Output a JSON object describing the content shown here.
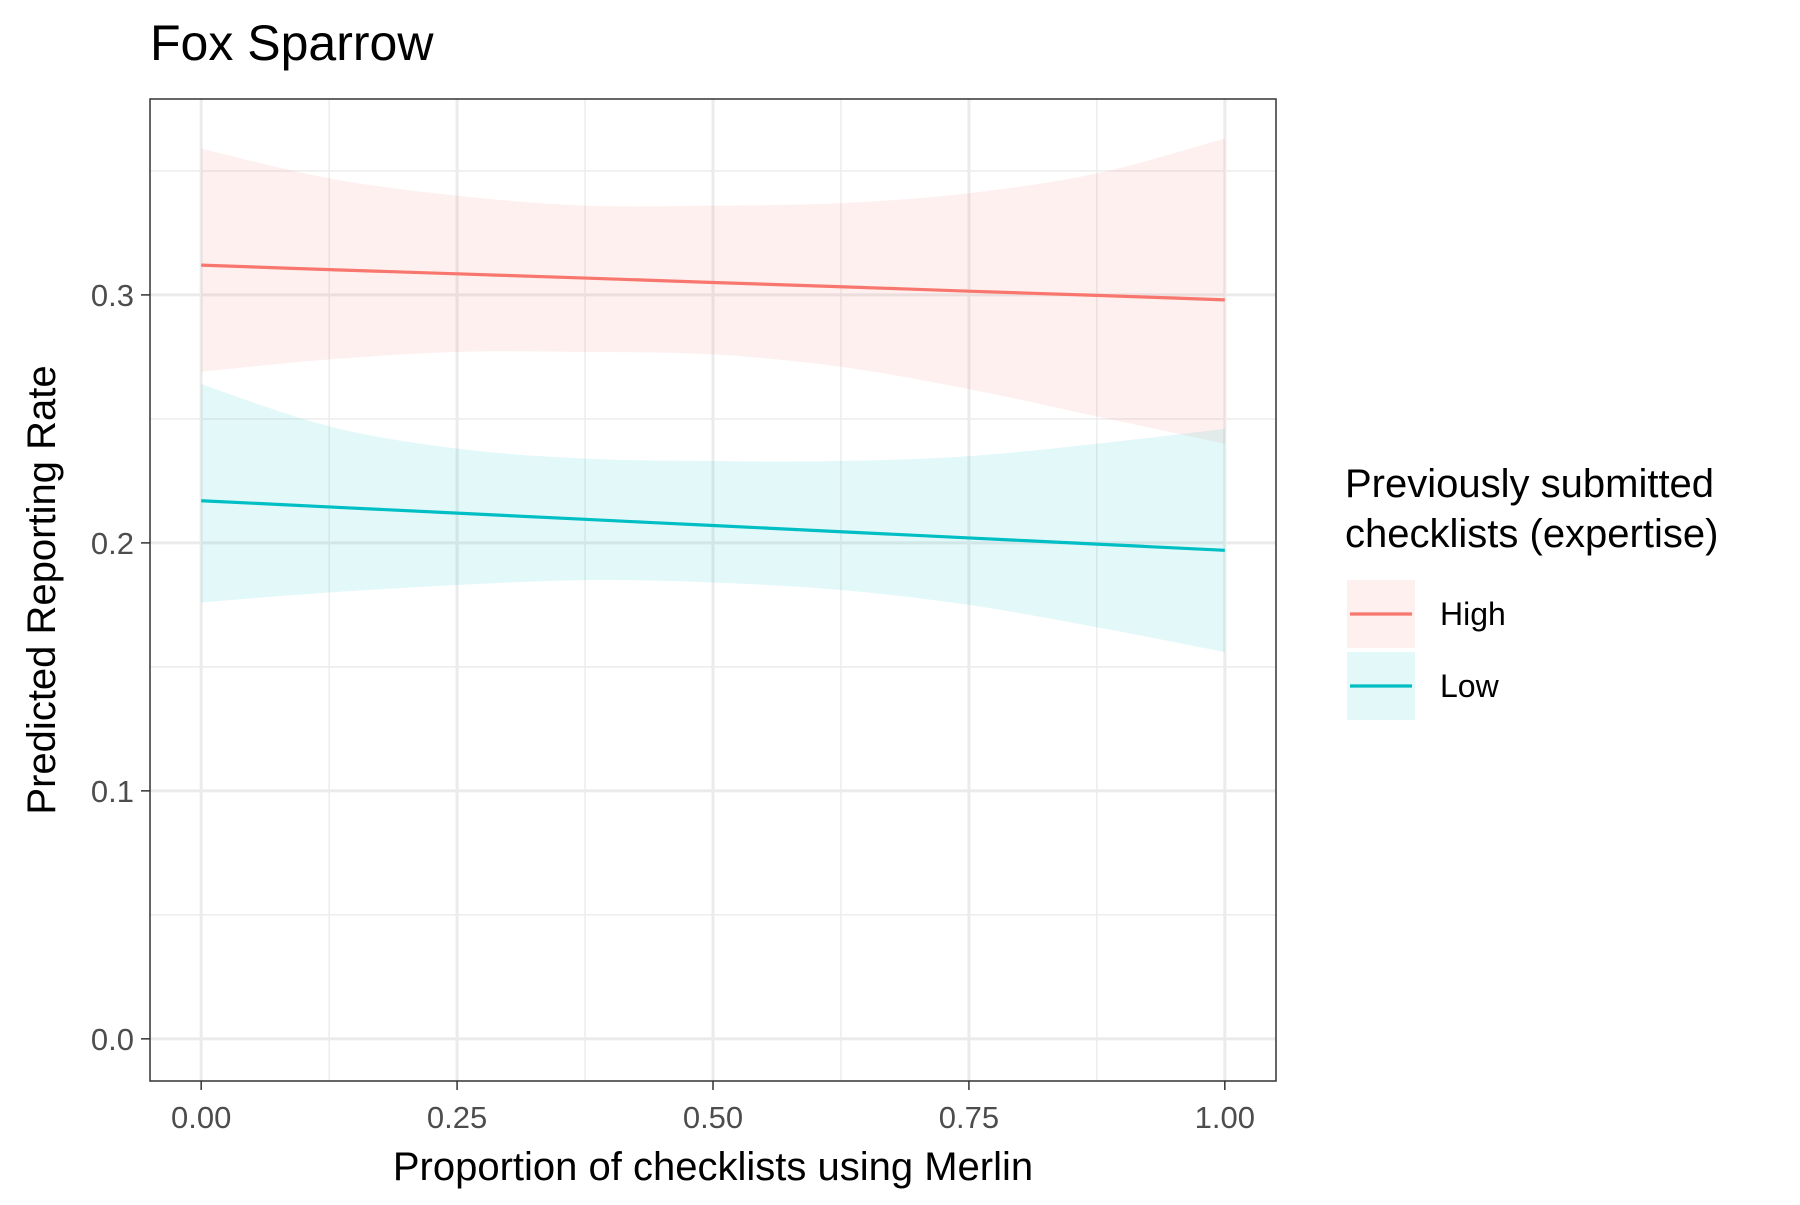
{
  "chart_data": {
    "type": "line",
    "title": "Fox Sparrow",
    "xlabel": "Proportion of checklists using Merlin",
    "ylabel": "Predicted Reporting Rate",
    "xlim": [
      -0.05,
      1.05
    ],
    "ylim": [
      -0.017,
      0.379
    ],
    "x_ticks": [
      0.0,
      0.25,
      0.5,
      0.75,
      1.0
    ],
    "x_tick_labels": [
      "0.00",
      "0.25",
      "0.50",
      "0.75",
      "1.00"
    ],
    "y_ticks": [
      0.0,
      0.1,
      0.2,
      0.3
    ],
    "y_tick_labels": [
      "0.0",
      "0.1",
      "0.2",
      "0.3"
    ],
    "grid": true,
    "legend": {
      "title": "Previously submitted\nchecklists (expertise)",
      "placement": "right"
    },
    "series": [
      {
        "name": "High",
        "color": "#F8766D",
        "fill": "#F8766D",
        "x": [
          0.0,
          0.125,
          0.25,
          0.375,
          0.5,
          0.625,
          0.75,
          0.875,
          1.0
        ],
        "values": [
          0.312,
          0.3102,
          0.3085,
          0.3068,
          0.305,
          0.3033,
          0.3015,
          0.2998,
          0.298
        ],
        "lower": [
          0.269,
          0.274,
          0.277,
          0.277,
          0.276,
          0.271,
          0.262,
          0.251,
          0.24
        ],
        "upper": [
          0.359,
          0.347,
          0.34,
          0.336,
          0.336,
          0.337,
          0.341,
          0.349,
          0.363
        ]
      },
      {
        "name": "Low",
        "color": "#00BFC4",
        "fill": "#00BFC4",
        "x": [
          0.0,
          0.125,
          0.25,
          0.375,
          0.5,
          0.625,
          0.75,
          0.875,
          1.0
        ],
        "values": [
          0.217,
          0.2145,
          0.212,
          0.2095,
          0.207,
          0.2045,
          0.202,
          0.1995,
          0.197
        ],
        "lower": [
          0.176,
          0.18,
          0.183,
          0.185,
          0.184,
          0.181,
          0.175,
          0.166,
          0.156
        ],
        "upper": [
          0.264,
          0.247,
          0.238,
          0.234,
          0.233,
          0.233,
          0.235,
          0.24,
          0.246
        ]
      }
    ]
  }
}
